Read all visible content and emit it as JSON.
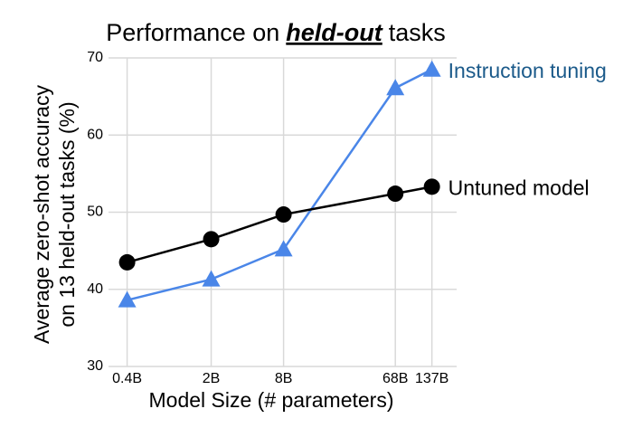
{
  "chart_data": {
    "type": "line",
    "title": {
      "prefix": "Performance on",
      "emphasis": "held-out",
      "suffix": "tasks"
    },
    "xlabel": "Model Size (# parameters)",
    "ylabel": [
      "Average zero-shot accuracy",
      "on 13 held-out tasks (%)"
    ],
    "x": [
      0.4,
      2,
      8,
      68,
      137
    ],
    "xscale": "log",
    "xlim": [
      0.28,
      220
    ],
    "xticks": [
      {
        "value": 0.4,
        "label": "0.4B"
      },
      {
        "value": 2,
        "label": "2B"
      },
      {
        "value": 8,
        "label": "8B"
      },
      {
        "value": 68,
        "label": "68B"
      },
      {
        "value": 137,
        "label": "137B"
      }
    ],
    "ylim": [
      30,
      70
    ],
    "yticks": [
      30,
      40,
      50,
      60,
      70
    ],
    "grid": true,
    "series": [
      {
        "name": "Instruction tuning",
        "color": "#4a86e8",
        "label_color": "#1b5a8a",
        "marker": "triangle",
        "values": [
          38.6,
          41.3,
          45.2,
          66.1,
          68.5
        ]
      },
      {
        "name": "Untuned model",
        "color": "#000000",
        "label_color": "#000000",
        "marker": "circle",
        "values": [
          43.5,
          46.5,
          49.7,
          52.4,
          53.3
        ]
      }
    ]
  }
}
